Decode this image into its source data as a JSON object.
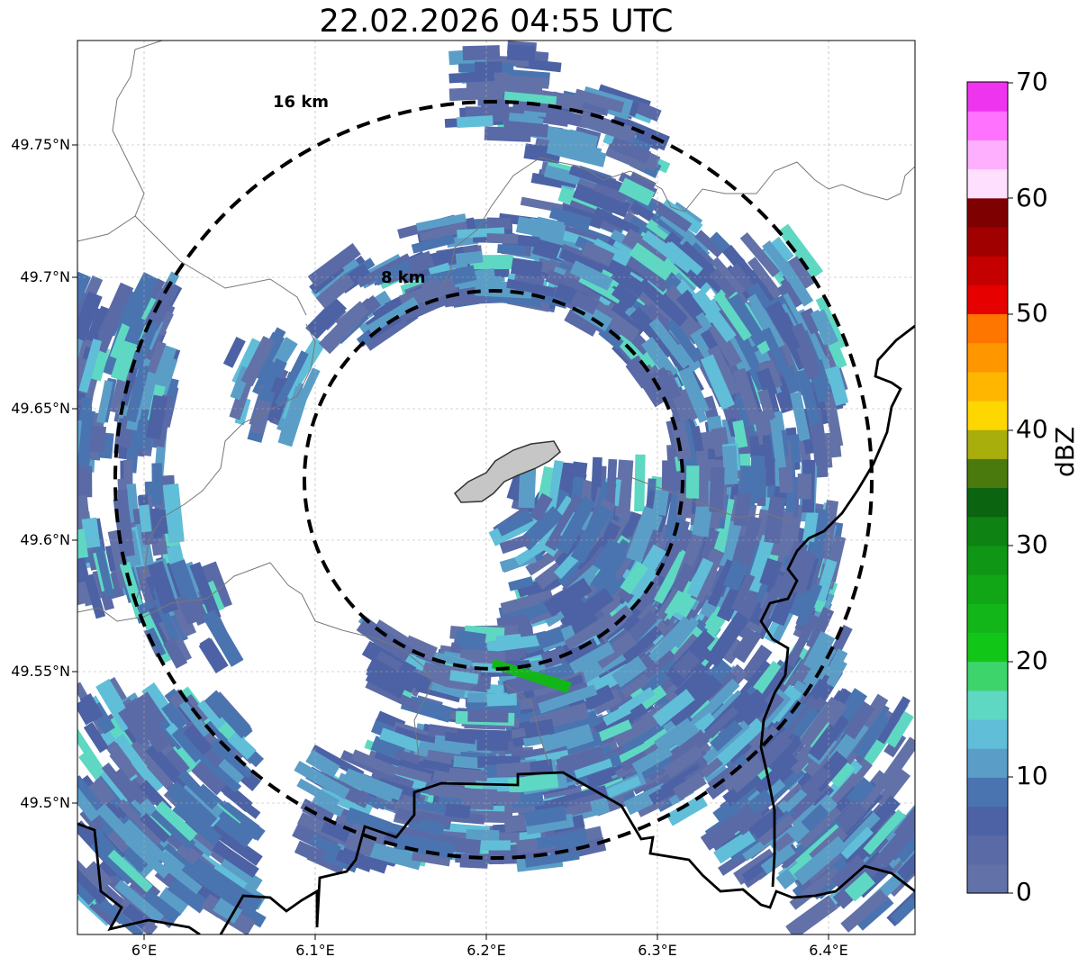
{
  "title": "22.02.2026 04:55 UTC",
  "map": {
    "lat_ticks": [
      "49.75°N",
      "49.7°N",
      "49.65°N",
      "49.6°N",
      "49.55°N",
      "49.5°N"
    ],
    "lon_ticks": [
      "6°E",
      "6.1°E",
      "6.2°E",
      "6.3°E",
      "6.4°E"
    ],
    "lon_range": [
      5.96,
      6.45
    ],
    "lat_range": [
      49.45,
      49.79
    ],
    "radar_center": {
      "lon": 6.203,
      "lat": 49.623
    },
    "range_rings": [
      {
        "label": "8 km",
        "radius_km": 8
      },
      {
        "label": "16 km",
        "radius_km": 16
      }
    ]
  },
  "colorbar": {
    "label": "dBZ",
    "ticks": [
      "70",
      "60",
      "50",
      "40",
      "30",
      "20",
      "10",
      "0"
    ],
    "min": 0,
    "max": 70,
    "colors": [
      "#6272a8",
      "#5a6aa6",
      "#4c62a4",
      "#4a74b0",
      "#5a9ec8",
      "#60bed8",
      "#5ed8c2",
      "#3ed46c",
      "#12c618",
      "#12b618",
      "#10a616",
      "#0e9614",
      "#0e8212",
      "#0a6410",
      "#4a7a0e",
      "#a8ae0c",
      "#fed600",
      "#feb600",
      "#fe9600",
      "#fe7600",
      "#e60000",
      "#c40000",
      "#a00000",
      "#7e0000",
      "#fee0fe",
      "#feb0fe",
      "#fe72fe",
      "#ee34ee"
    ]
  }
}
